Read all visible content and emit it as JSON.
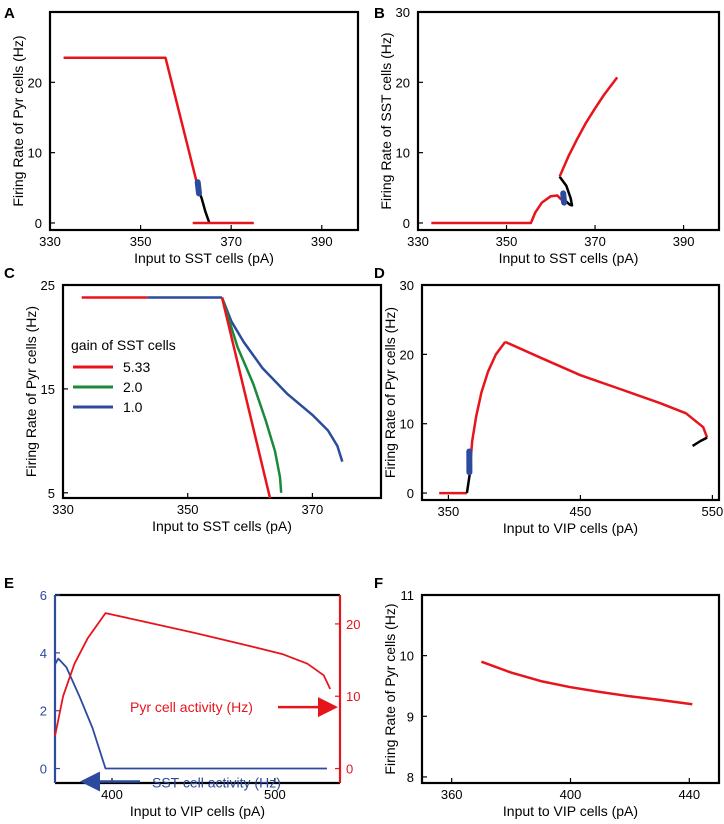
{
  "colors": {
    "red": "#e8141c",
    "black": "#000000",
    "blue": "#2c4a9e",
    "green": "#1a8a3a",
    "axis": "#000000"
  },
  "chart_data": [
    {
      "panel": "A",
      "type": "line",
      "xlabel": "Input to SST cells (pA)",
      "ylabel": "Firing Rate of Pyr cells (Hz)",
      "xlim": [
        330,
        398
      ],
      "ylim": [
        -1,
        30
      ],
      "xticks": [
        330,
        350,
        370,
        390
      ],
      "xtick_labels": [
        "330",
        "350",
        "370",
        "390"
      ],
      "yticks": [
        0,
        10,
        20
      ],
      "ytick_labels": [
        "0",
        "10",
        "20"
      ],
      "series": [
        {
          "name": "stable-high",
          "color": "red",
          "width": 2.5,
          "points": [
            [
              333,
              23.5
            ],
            [
              355.5,
              23.5
            ],
            [
              363,
              4.2
            ]
          ]
        },
        {
          "name": "unstable",
          "color": "black",
          "width": 2.5,
          "points": [
            [
              362.5,
              5.2
            ],
            [
              363.5,
              3.5
            ],
            [
              364.3,
              1.6
            ],
            [
              365.2,
              0
            ]
          ]
        },
        {
          "name": "stable-low",
          "color": "red",
          "width": 2.5,
          "points": [
            [
              361.5,
              0
            ],
            [
              375,
              0
            ]
          ]
        },
        {
          "name": "bifurcation",
          "color": "blue",
          "width": 6,
          "points": [
            [
              362.6,
              5.8
            ],
            [
              362.9,
              4.2
            ]
          ]
        }
      ]
    },
    {
      "panel": "B",
      "type": "line",
      "xlabel": "Input to SST cells (pA)",
      "ylabel": "Firing Rate of SST cells (Hz)",
      "xlim": [
        330,
        398
      ],
      "ylim": [
        -1,
        30
      ],
      "xticks": [
        330,
        350,
        370,
        390
      ],
      "xtick_labels": [
        "330",
        "350",
        "370",
        "390"
      ],
      "yticks": [
        0,
        10,
        20,
        30
      ],
      "ytick_labels": [
        "0",
        "10",
        "20",
        "30"
      ],
      "series": [
        {
          "name": "low-branch",
          "color": "red",
          "width": 2.5,
          "points": [
            [
              333,
              0
            ],
            [
              355.5,
              0
            ],
            [
              356.5,
              1.5
            ],
            [
              358,
              2.9
            ],
            [
              360,
              3.8
            ],
            [
              361.5,
              3.9
            ],
            [
              362.4,
              3.3
            ]
          ]
        },
        {
          "name": "unstable",
          "color": "black",
          "width": 2.5,
          "points": [
            [
              362,
              6.6
            ],
            [
              363.5,
              5.3
            ],
            [
              364.5,
              3.5
            ],
            [
              364.8,
              2.5
            ],
            [
              364.3,
              2.6
            ],
            [
              363.2,
              3.2
            ]
          ]
        },
        {
          "name": "high-branch",
          "color": "red",
          "width": 2.5,
          "points": [
            [
              362,
              6.6
            ],
            [
              364,
              9.5
            ],
            [
              366,
              12
            ],
            [
              368,
              14.3
            ],
            [
              370,
              16.3
            ],
            [
              372,
              18.2
            ],
            [
              375,
              20.7
            ]
          ]
        },
        {
          "name": "bifurcation",
          "color": "blue",
          "width": 6,
          "points": [
            [
              362.8,
              4.2
            ],
            [
              363.0,
              2.9
            ]
          ]
        }
      ]
    },
    {
      "panel": "C",
      "type": "line",
      "xlabel": "Input to SST cells (pA)",
      "ylabel": "Firing Rate of Pyr cells (Hz)",
      "xlim": [
        330,
        381
      ],
      "ylim": [
        4.5,
        25
      ],
      "xticks": [
        330,
        350,
        370
      ],
      "xtick_labels": [
        "330",
        "350",
        "370"
      ],
      "yticks": [
        5,
        15,
        25
      ],
      "ytick_labels": [
        "5",
        "15",
        "25"
      ],
      "legend": {
        "title": "gain of SST cells",
        "entries": [
          {
            "label": "5.33",
            "color": "red"
          },
          {
            "label": "2.0",
            "color": "green"
          },
          {
            "label": "1.0",
            "color": "blue"
          }
        ]
      },
      "series": [
        {
          "name": "plateau-blue",
          "color": "blue",
          "width": 2.5,
          "points": [
            [
              343.5,
              23.8
            ],
            [
              355.5,
              23.8
            ]
          ]
        },
        {
          "name": "plateau-red",
          "color": "red",
          "width": 2.5,
          "points": [
            [
              333,
              23.8
            ],
            [
              343.5,
              23.8
            ]
          ]
        },
        {
          "name": "gain-1.0",
          "color": "blue",
          "width": 2.5,
          "points": [
            [
              355.5,
              23.8
            ],
            [
              357,
              21.5
            ],
            [
              359,
              19.5
            ],
            [
              362,
              17
            ],
            [
              366,
              14.5
            ],
            [
              370,
              12.5
            ],
            [
              372.5,
              11
            ],
            [
              374,
              9.5
            ],
            [
              374.8,
              8
            ]
          ]
        },
        {
          "name": "gain-2.0",
          "color": "green",
          "width": 2.5,
          "points": [
            [
              355.5,
              23.8
            ],
            [
              358,
              19
            ],
            [
              360.5,
              15.5
            ],
            [
              362.5,
              12
            ],
            [
              364,
              9
            ],
            [
              364.8,
              6.5
            ],
            [
              365,
              5
            ]
          ]
        },
        {
          "name": "gain-5.33",
          "color": "red",
          "width": 2.5,
          "points": [
            [
              355.5,
              23.8
            ],
            [
              363.2,
              4.5
            ]
          ]
        }
      ]
    },
    {
      "panel": "D",
      "type": "line",
      "xlabel": "Input to VIP cells (pA)",
      "ylabel": "Firing Rate of Pyr cells (Hz)",
      "xlim": [
        330,
        555
      ],
      "ylim": [
        -1,
        30
      ],
      "xticks": [
        350,
        450,
        550
      ],
      "xtick_labels": [
        "350",
        "450",
        "550"
      ],
      "yticks": [
        0,
        10,
        20,
        30
      ],
      "ytick_labels": [
        "0",
        "10",
        "20",
        "30"
      ],
      "series": [
        {
          "name": "low",
          "color": "red",
          "width": 2.5,
          "points": [
            [
              343,
              0
            ],
            [
              364,
              0
            ]
          ]
        },
        {
          "name": "unstable-low",
          "color": "black",
          "width": 2.5,
          "points": [
            [
              364,
              0
            ],
            [
              366,
              2.5
            ],
            [
              366.8,
              5
            ]
          ]
        },
        {
          "name": "rise",
          "color": "red",
          "width": 2.5,
          "points": [
            [
              366.5,
              4
            ],
            [
              368,
              7.5
            ],
            [
              371,
              11
            ],
            [
              375,
              14.5
            ],
            [
              380,
              17.5
            ],
            [
              386,
              20
            ],
            [
              393,
              21.8
            ]
          ]
        },
        {
          "name": "decline",
          "color": "red",
          "width": 2.5,
          "points": [
            [
              393,
              21.8
            ],
            [
              420,
              19.5
            ],
            [
              450,
              17
            ],
            [
              480,
              15
            ],
            [
              510,
              13
            ],
            [
              530,
              11.5
            ],
            [
              543,
              9.5
            ],
            [
              546,
              8
            ]
          ]
        },
        {
          "name": "unstable-high",
          "color": "black",
          "width": 2.5,
          "points": [
            [
              546,
              8
            ],
            [
              541,
              7.5
            ],
            [
              535,
              6.8
            ]
          ]
        },
        {
          "name": "bifurcation",
          "color": "blue",
          "width": 6,
          "points": [
            [
              365.8,
              6
            ],
            [
              365.9,
              3
            ]
          ]
        }
      ]
    },
    {
      "panel": "E",
      "type": "line",
      "xlabel": "Input to VIP cells (pA)",
      "ylabel": "",
      "xlim": [
        365,
        540
      ],
      "ylim": [
        -0.5,
        6
      ],
      "xticks": [
        400,
        500
      ],
      "xtick_labels": [
        "400",
        "500"
      ],
      "yticks": [
        0,
        2,
        4,
        6
      ],
      "ytick_labels": [
        "0",
        "2",
        "4",
        "6"
      ],
      "y2lim": [
        -2,
        24
      ],
      "y2ticks": [
        0,
        10,
        20
      ],
      "y2tick_labels": [
        "0",
        "10",
        "20"
      ],
      "annotations": [
        "Pyr cell activity (Hz)",
        "SST cell activity (Hz)"
      ],
      "series": [
        {
          "name": "SST activity",
          "axis": "left",
          "color": "blue",
          "width": 1.8,
          "points": [
            [
              365,
              3.6
            ],
            [
              367,
              3.8
            ],
            [
              372,
              3.5
            ],
            [
              380,
              2.5
            ],
            [
              388,
              1.4
            ],
            [
              396,
              0
            ],
            [
              532,
              0
            ]
          ]
        },
        {
          "name": "Pyr activity",
          "axis": "right",
          "color": "red",
          "width": 1.8,
          "points": [
            [
              365,
              4.5
            ],
            [
              370,
              10
            ],
            [
              377,
              14.5
            ],
            [
              385,
              18
            ],
            [
              396,
              21.5
            ],
            [
              420,
              20.3
            ],
            [
              450,
              18.8
            ],
            [
              480,
              17.2
            ],
            [
              505,
              15.8
            ],
            [
              520,
              14.5
            ],
            [
              530,
              12.9
            ],
            [
              534,
              11
            ]
          ]
        }
      ]
    },
    {
      "panel": "F",
      "type": "line",
      "xlabel": "Input to VIP cells (pA)",
      "ylabel": "Firing Rate of Pyr cells (Hz)",
      "xlim": [
        350,
        450
      ],
      "ylim": [
        7.9,
        11
      ],
      "xticks": [
        360,
        400,
        440
      ],
      "xtick_labels": [
        "360",
        "400",
        "440"
      ],
      "yticks": [
        8,
        9,
        10,
        11
      ],
      "ytick_labels": [
        "8",
        "9",
        "10",
        "11"
      ],
      "series": [
        {
          "name": "Pyr",
          "color": "red",
          "width": 2.5,
          "points": [
            [
              370,
              9.9
            ],
            [
              380,
              9.72
            ],
            [
              390,
              9.58
            ],
            [
              400,
              9.48
            ],
            [
              410,
              9.4
            ],
            [
              420,
              9.33
            ],
            [
              430,
              9.27
            ],
            [
              441,
              9.2
            ]
          ]
        }
      ]
    }
  ]
}
